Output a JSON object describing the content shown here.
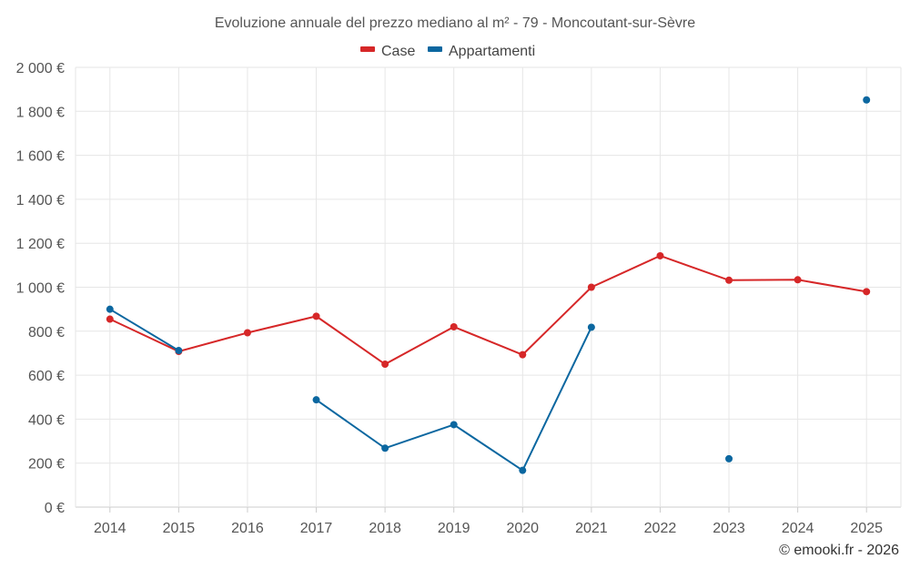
{
  "chart_data": {
    "type": "line",
    "title": "Evoluzione annuale del prezzo mediano al m² - 79 - Moncoutant-sur-Sèvre",
    "categories": [
      "2014",
      "2015",
      "2016",
      "2017",
      "2018",
      "2019",
      "2020",
      "2021",
      "2022",
      "2023",
      "2024",
      "2025"
    ],
    "series": [
      {
        "name": "Case",
        "color": "#d62728",
        "values": [
          855,
          708,
          793,
          868,
          650,
          820,
          693,
          1000,
          1143,
          1032,
          1034,
          980
        ]
      },
      {
        "name": "Appartamenti",
        "color": "#0b67a0",
        "values": [
          900,
          712,
          null,
          488,
          268,
          375,
          167,
          818,
          null,
          220,
          null,
          1852
        ]
      }
    ],
    "ylim": [
      0,
      2000
    ],
    "yticks": [
      0,
      200,
      400,
      600,
      800,
      1000,
      1200,
      1400,
      1600,
      1800,
      2000
    ],
    "ytick_labels": [
      "0 €",
      "200 €",
      "400 €",
      "600 €",
      "800 €",
      "1 000 €",
      "1 200 €",
      "1 400 €",
      "1 600 €",
      "1 800 €",
      "2 000 €"
    ],
    "xlabel": "",
    "ylabel": "",
    "grid": true,
    "legend_position": "top-center"
  },
  "credit": "© emooki.fr - 2026"
}
